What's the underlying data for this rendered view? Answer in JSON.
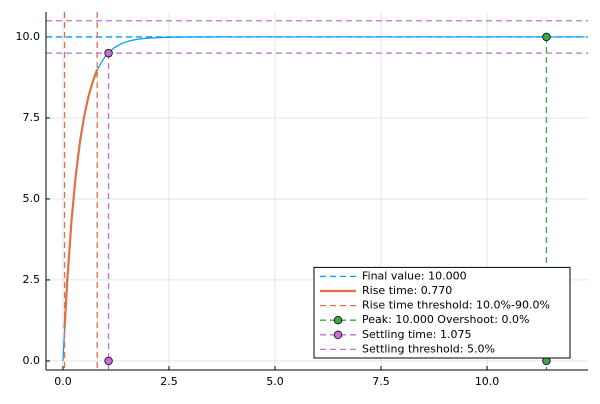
{
  "chart_data": {
    "type": "line",
    "xlim": [
      -0.4,
      12.38
    ],
    "ylim": [
      -0.28,
      10.77
    ],
    "xticks": [
      {
        "value": 0,
        "label": "0.0"
      },
      2.5,
      {
        "value": 5,
        "label": "5.0"
      },
      7.5,
      {
        "value": 10,
        "label": "10.0"
      }
    ],
    "yticks": [
      {
        "value": 0,
        "label": "0.0"
      },
      2.5,
      {
        "value": 5,
        "label": "5.0"
      },
      7.5,
      {
        "value": 10,
        "label": "10.0"
      }
    ],
    "grid": true,
    "legend": "bottom-right",
    "response": {
      "color": "#009AFA",
      "x": [
        0,
        0.1,
        0.2,
        0.3,
        0.4,
        0.5,
        0.6,
        0.7,
        0.8,
        0.9,
        1.0,
        1.2,
        1.4,
        1.6,
        1.8,
        2.0,
        2.5,
        3,
        4,
        6,
        8,
        10,
        12.3
      ],
      "values": [
        0,
        2.455,
        4.307,
        5.704,
        6.759,
        7.554,
        8.155,
        8.608,
        8.95,
        9.207,
        9.402,
        9.66,
        9.806,
        9.89,
        9.937,
        9.964,
        9.991,
        9.998,
        10,
        10,
        10,
        10,
        10
      ]
    },
    "series": [
      {
        "name": "Final value: 10.000",
        "kind": "hline",
        "color": "#009AFA",
        "values": [
          10
        ]
      },
      {
        "name": "Rise time: 0.770",
        "kind": "line",
        "color": "#E26F46",
        "x": [
          0.037,
          0.1,
          0.2,
          0.3,
          0.4,
          0.5,
          0.6,
          0.7,
          0.807
        ],
        "values": [
          1.0,
          2.455,
          4.307,
          5.704,
          6.759,
          7.554,
          8.155,
          8.608,
          9.0
        ]
      },
      {
        "name": "Rise time threshold: 10.0%-90.0%",
        "kind": "vline",
        "color": "#E26F46",
        "x": [
          0.037,
          0.807
        ]
      },
      {
        "name": "Peak: 10.000 Overshoot: 0.0%",
        "kind": "markers",
        "color": "#3DA44D",
        "x": [
          11.4,
          11.4
        ],
        "values": [
          10,
          0
        ]
      },
      {
        "name": "Settling time: 1.075",
        "kind": "markers",
        "color": "#C271D2",
        "x": [
          1.075,
          1.075
        ],
        "values": [
          9.5,
          0
        ]
      },
      {
        "name": "Settling threshold: 5.0%",
        "kind": "hline",
        "color": "#C271D2",
        "values": [
          9.5,
          10.5
        ]
      }
    ]
  }
}
